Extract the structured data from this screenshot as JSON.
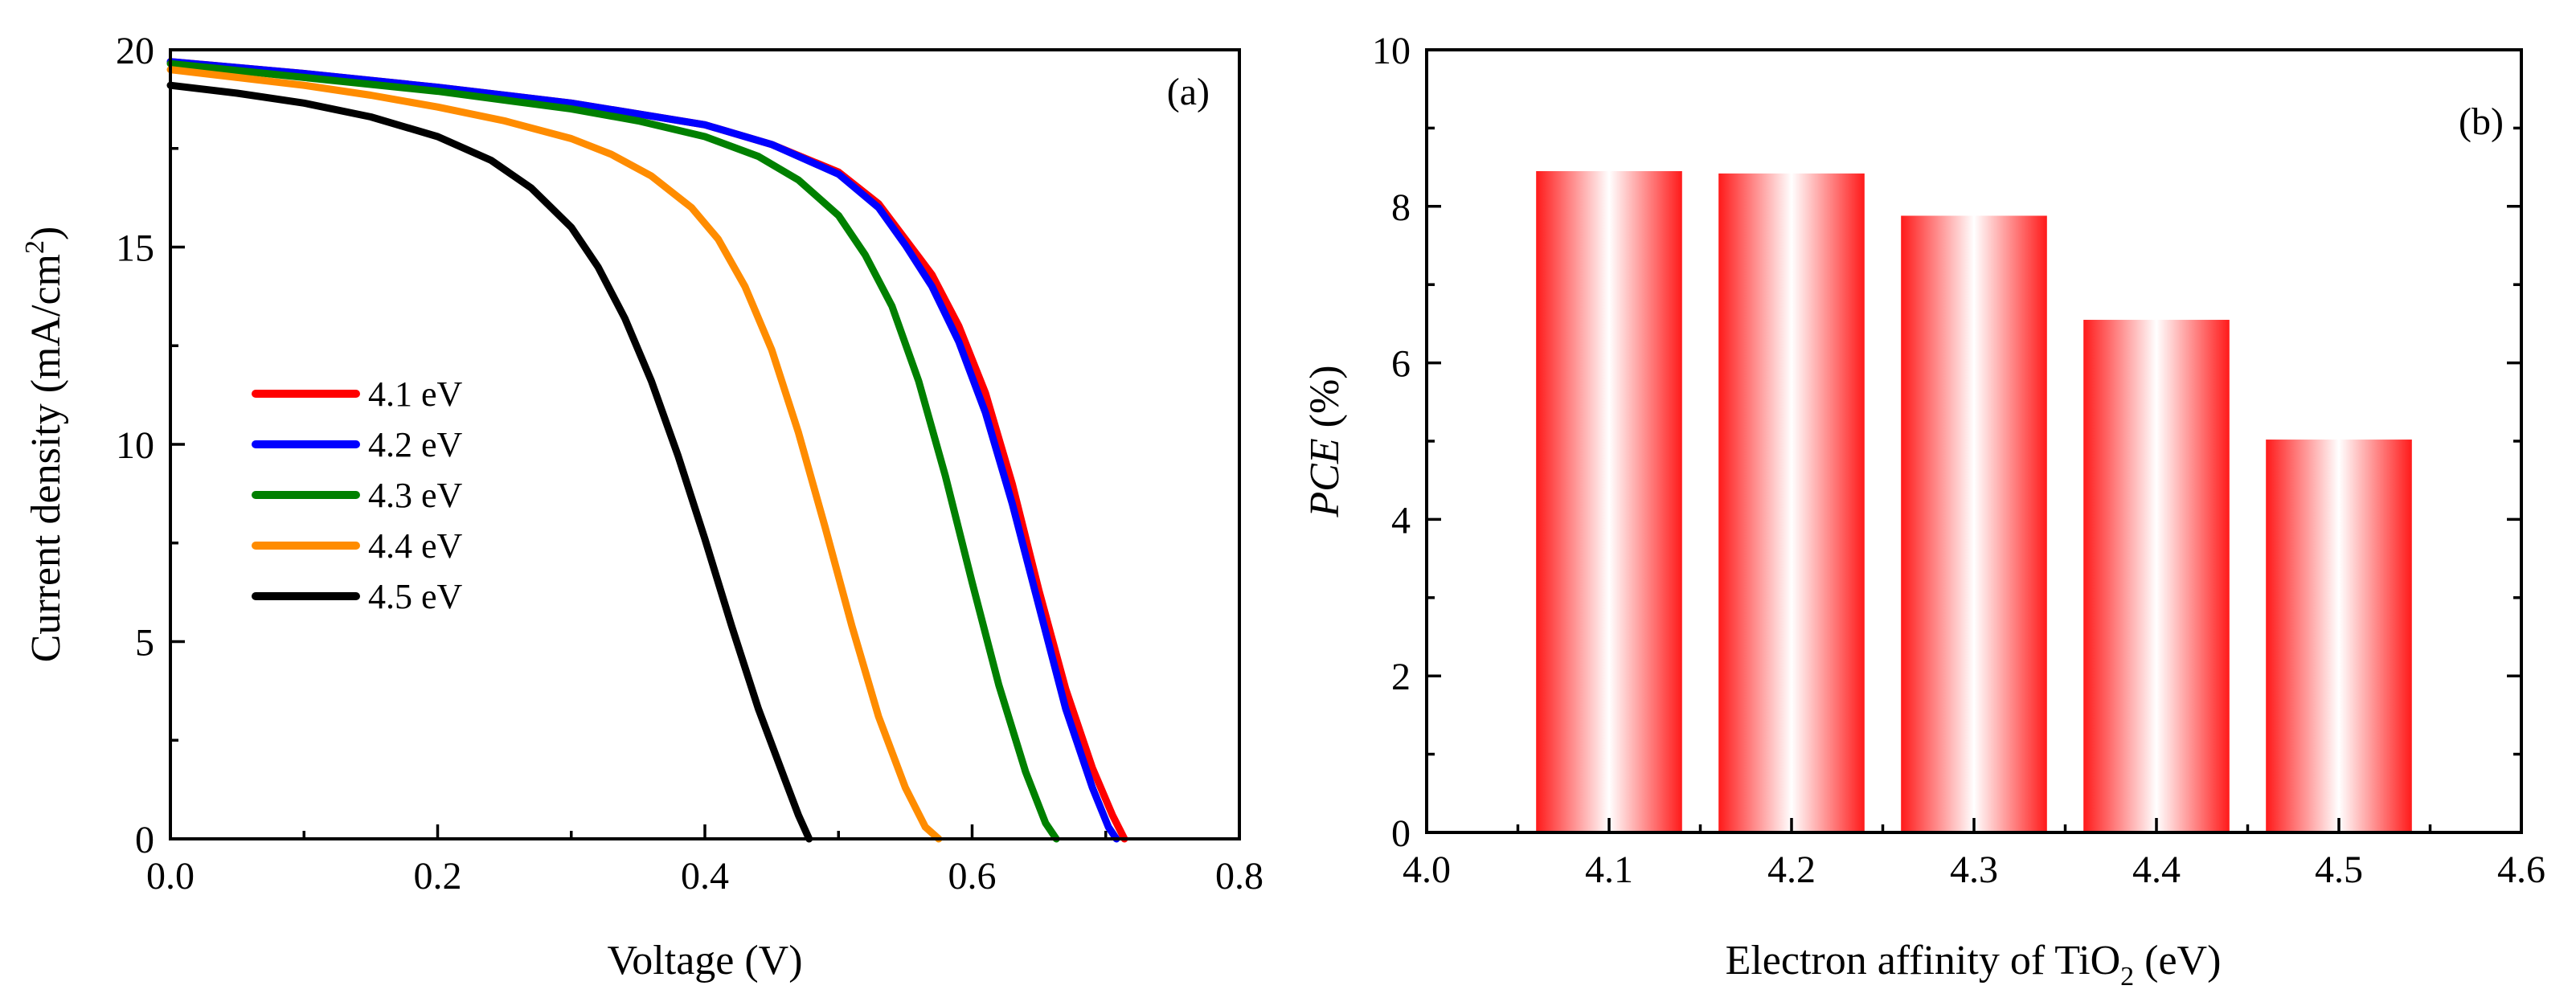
{
  "colors": {
    "red": "#ff0000",
    "blue": "#0000ff",
    "green": "#008000",
    "orange": "#ff8c00",
    "black": "#000000",
    "bar_edge": "#ff1a1a",
    "bar_center": "#ffffff"
  },
  "chart_data": [
    {
      "panel": "(a)",
      "type": "line",
      "xlabel": "Voltage (V)",
      "ylabel": {
        "main": "Current density (mA/cm",
        "sup": "2",
        "tail": ")"
      },
      "xlim": [
        0.0,
        0.8
      ],
      "ylim": [
        0,
        20
      ],
      "xticks": [
        0.0,
        0.2,
        0.4,
        0.6,
        0.8
      ],
      "xtick_labels": [
        "0.0",
        "0.2",
        "0.4",
        "0.6",
        "0.8"
      ],
      "yticks": [
        0,
        5,
        10,
        15,
        20
      ],
      "ytick_labels": [
        "0",
        "5",
        "10",
        "15",
        "20"
      ],
      "grid": false,
      "legend_position": "center-left",
      "series": [
        {
          "name": "4.1 eV",
          "color": "#ff0000",
          "points": [
            [
              0,
              19.7
            ],
            [
              0.1,
              19.4
            ],
            [
              0.2,
              19.05
            ],
            [
              0.3,
              18.65
            ],
            [
              0.4,
              18.1
            ],
            [
              0.45,
              17.6
            ],
            [
              0.5,
              16.9
            ],
            [
              0.53,
              16.1
            ],
            [
              0.55,
              15.2
            ],
            [
              0.57,
              14.3
            ],
            [
              0.59,
              13.0
            ],
            [
              0.61,
              11.3
            ],
            [
              0.63,
              9.0
            ],
            [
              0.65,
              6.3
            ],
            [
              0.67,
              3.8
            ],
            [
              0.69,
              1.8
            ],
            [
              0.705,
              0.6
            ],
            [
              0.714,
              0
            ]
          ]
        },
        {
          "name": "4.2 eV",
          "color": "#0000ff",
          "points": [
            [
              0,
              19.7
            ],
            [
              0.1,
              19.4
            ],
            [
              0.2,
              19.05
            ],
            [
              0.3,
              18.65
            ],
            [
              0.4,
              18.1
            ],
            [
              0.45,
              17.6
            ],
            [
              0.5,
              16.85
            ],
            [
              0.53,
              16.0
            ],
            [
              0.55,
              15.05
            ],
            [
              0.57,
              14.0
            ],
            [
              0.59,
              12.6
            ],
            [
              0.61,
              10.8
            ],
            [
              0.63,
              8.5
            ],
            [
              0.65,
              5.9
            ],
            [
              0.67,
              3.3
            ],
            [
              0.69,
              1.3
            ],
            [
              0.702,
              0.3
            ],
            [
              0.708,
              0
            ]
          ]
        },
        {
          "name": "4.3 eV",
          "color": "#008000",
          "points": [
            [
              0,
              19.65
            ],
            [
              0.1,
              19.3
            ],
            [
              0.2,
              18.95
            ],
            [
              0.3,
              18.5
            ],
            [
              0.35,
              18.2
            ],
            [
              0.4,
              17.8
            ],
            [
              0.44,
              17.3
            ],
            [
              0.47,
              16.7
            ],
            [
              0.5,
              15.8
            ],
            [
              0.52,
              14.8
            ],
            [
              0.54,
              13.5
            ],
            [
              0.56,
              11.6
            ],
            [
              0.58,
              9.2
            ],
            [
              0.6,
              6.5
            ],
            [
              0.62,
              3.9
            ],
            [
              0.64,
              1.7
            ],
            [
              0.655,
              0.4
            ],
            [
              0.663,
              0
            ]
          ]
        },
        {
          "name": "4.4 eV",
          "color": "#ff8c00",
          "points": [
            [
              0,
              19.5
            ],
            [
              0.05,
              19.3
            ],
            [
              0.1,
              19.1
            ],
            [
              0.15,
              18.85
            ],
            [
              0.2,
              18.55
            ],
            [
              0.25,
              18.2
            ],
            [
              0.3,
              17.75
            ],
            [
              0.33,
              17.35
            ],
            [
              0.36,
              16.8
            ],
            [
              0.39,
              16.0
            ],
            [
              0.41,
              15.2
            ],
            [
              0.43,
              14.0
            ],
            [
              0.45,
              12.4
            ],
            [
              0.47,
              10.3
            ],
            [
              0.49,
              7.9
            ],
            [
              0.51,
              5.4
            ],
            [
              0.53,
              3.1
            ],
            [
              0.55,
              1.3
            ],
            [
              0.565,
              0.3
            ],
            [
              0.575,
              0
            ]
          ]
        },
        {
          "name": "4.5 eV",
          "color": "#000000",
          "points": [
            [
              0,
              19.1
            ],
            [
              0.05,
              18.9
            ],
            [
              0.1,
              18.65
            ],
            [
              0.15,
              18.3
            ],
            [
              0.2,
              17.8
            ],
            [
              0.24,
              17.2
            ],
            [
              0.27,
              16.5
            ],
            [
              0.3,
              15.5
            ],
            [
              0.32,
              14.5
            ],
            [
              0.34,
              13.2
            ],
            [
              0.36,
              11.6
            ],
            [
              0.38,
              9.7
            ],
            [
              0.4,
              7.6
            ],
            [
              0.42,
              5.4
            ],
            [
              0.44,
              3.3
            ],
            [
              0.46,
              1.5
            ],
            [
              0.47,
              0.6
            ],
            [
              0.478,
              0
            ]
          ]
        }
      ]
    },
    {
      "panel": "(b)",
      "type": "bar",
      "xlabel": {
        "main": "Electron affinity of TiO",
        "sub": "2",
        "tail": " (eV)"
      },
      "ylabel": {
        "italic": "PCE",
        "tail": " (%)"
      },
      "categories": [
        4.1,
        4.2,
        4.3,
        4.4,
        4.5
      ],
      "values": [
        8.45,
        8.42,
        7.88,
        6.55,
        5.02
      ],
      "bar_width": 0.08,
      "xlim": [
        4.0,
        4.6
      ],
      "ylim": [
        0,
        10
      ],
      "xticks": [
        4.0,
        4.1,
        4.2,
        4.3,
        4.4,
        4.5,
        4.6
      ],
      "xtick_labels": [
        "4.0",
        "4.1",
        "4.2",
        "4.3",
        "4.4",
        "4.5",
        "4.6"
      ],
      "yticks": [
        0,
        2,
        4,
        6,
        8,
        10
      ],
      "ytick_labels": [
        "0",
        "2",
        "4",
        "6",
        "8",
        "10"
      ],
      "grid": false
    }
  ]
}
